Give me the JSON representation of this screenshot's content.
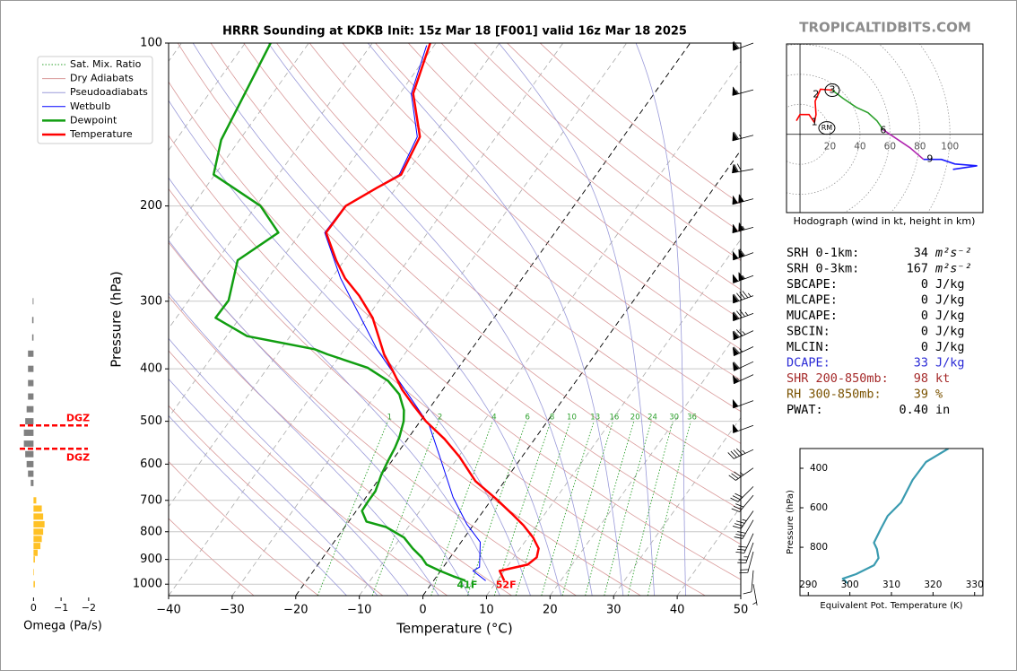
{
  "chart_data": [
    {
      "type": "skewt",
      "title": "HRRR Sounding at KDKB Init: 15z Mar 18 [F001] valid 16z Mar 18 2025",
      "x_label": "Temperature (°C)",
      "y_label": "Pressure (hPa)",
      "xlim": [
        -40,
        50
      ],
      "xticks": [
        {
          "value": -40,
          "label": "−40"
        },
        {
          "value": -30,
          "label": "−30"
        },
        {
          "value": -20,
          "label": "−20"
        },
        {
          "value": -10,
          "label": "−10"
        },
        0,
        10,
        20,
        30,
        40,
        50
      ],
      "ylim": [
        1050,
        100
      ],
      "yticks": [
        100,
        200,
        300,
        400,
        500,
        600,
        700,
        800,
        900,
        1000
      ],
      "log_y": true,
      "grid": true,
      "legend": "upper left",
      "mixing_ratio": {
        "name": "Sat. Mix. Ratio",
        "color": "#2ca02c",
        "values": [
          1,
          2,
          4,
          6,
          8,
          10,
          13,
          16,
          20,
          24,
          30,
          36
        ]
      },
      "dry_adiabats": {
        "name": "Dry Adiabats",
        "color": "#d99a9a",
        "values": [
          -30,
          -20,
          -10,
          0,
          10,
          20,
          30,
          40,
          50,
          60,
          70,
          80,
          90,
          100,
          110,
          120,
          130,
          140,
          150,
          160,
          170
        ]
      },
      "pseudoadiabats": {
        "name": "Pseudoadiabats",
        "color": "#9a9ad9",
        "values": [
          -15,
          -10,
          -5,
          0,
          5,
          10,
          15,
          20,
          25,
          30,
          35,
          40
        ]
      },
      "isotherms": {
        "color": "#aaaaaa",
        "values": [
          -110,
          -100,
          -90,
          -80,
          -70,
          -60,
          -50,
          -40,
          -30,
          -20,
          -10,
          0,
          10,
          20,
          30,
          40
        ],
        "highlight": [
          -20,
          0
        ]
      },
      "series": [
        {
          "name": "Wetbulb",
          "color": "#0000ff",
          "pressure": [
            985,
            945,
            930,
            836,
            775,
            691,
            582,
            509,
            446,
            368,
            272,
            224,
            200,
            175,
            149,
            124,
            101
          ],
          "values": [
            8.2,
            5.1,
            5.7,
            3.0,
            -1.1,
            -6.3,
            -12.9,
            -18.1,
            -24.9,
            -34.9,
            -48.6,
            -56.2,
            -56.0,
            -51.0,
            -52.4,
            -58.2,
            -61.2
          ]
        },
        {
          "name": "Dewpoint",
          "color": "#119e11",
          "surface_label": "41F",
          "pressure": [
            985,
            967,
            945,
            920,
            892,
            859,
            820,
            784,
            766,
            732,
            704,
            673,
            628,
            593,
            560,
            535,
            500,
            477,
            446,
            421,
            398,
            376,
            368,
            348,
            322,
            299,
            252,
            224,
            200,
            175,
            151,
            127,
            100
          ],
          "values": [
            5.0,
            2.6,
            -0.1,
            -2.9,
            -4.5,
            -6.9,
            -9.5,
            -13.5,
            -17.2,
            -19.1,
            -19.2,
            -19.2,
            -20.1,
            -20.6,
            -21.0,
            -21.5,
            -22.6,
            -23.8,
            -26.3,
            -29.6,
            -34.3,
            -42.1,
            -44.7,
            -56.8,
            -63.8,
            -63.7,
            -66.8,
            -63.5,
            -69.3,
            -80.2,
            -82.9,
            -84.2,
            -86.0
          ]
        },
        {
          "name": "Temperature",
          "color": "#ff0000",
          "surface_label": "52F",
          "pressure": [
            985,
            945,
            920,
            892,
            859,
            820,
            778,
            740,
            696,
            645,
            582,
            539,
            500,
            466,
            437,
            405,
            376,
            322,
            293,
            272,
            252,
            224,
            200,
            185,
            175,
            149,
            124,
            100
          ],
          "values": [
            11.1,
            9.3,
            13.0,
            13.6,
            12.9,
            10.8,
            7.9,
            4.7,
            0.7,
            -4.6,
            -9.8,
            -14.2,
            -19.1,
            -23.0,
            -26.4,
            -29.8,
            -33.2,
            -39.1,
            -43.7,
            -47.9,
            -51.3,
            -56.0,
            -55.9,
            -53.0,
            -50.7,
            -52.0,
            -57.9,
            -60.9
          ]
        }
      ],
      "wind": {
        "pressure": [
          100,
          122,
          148,
          171,
          194,
          219,
          244,
          269,
          293,
          316,
          340,
          364,
          388,
          410,
          458,
          509,
          564,
          610,
          660,
          685,
          732,
          761,
          806,
          838,
          871,
          943,
          1000
        ],
        "speed": [
          60,
          55,
          65,
          70,
          100,
          105,
          110,
          105,
          95,
          85,
          75,
          65,
          60,
          55,
          50,
          50,
          45,
          35,
          30,
          30,
          35,
          30,
          30,
          25,
          20,
          10,
          5
        ],
        "direction": [
          250,
          255,
          255,
          260,
          255,
          255,
          250,
          250,
          250,
          250,
          245,
          245,
          245,
          245,
          250,
          250,
          245,
          235,
          225,
          220,
          215,
          210,
          205,
          200,
          195,
          185,
          170
        ]
      }
    },
    {
      "type": "hbar",
      "x_label": "Omega (Pa/s)",
      "xlim": [
        0.5,
        -2.2
      ],
      "xticks": [
        0,
        {
          "value": -1,
          "label": "−1"
        },
        {
          "value": -2,
          "label": "−2"
        }
      ],
      "ylim": [
        1050,
        100
      ],
      "log_y": true,
      "positive_color": "#808080",
      "negative_color": "#ffc125",
      "pressure": [
        300,
        325,
        350,
        375,
        400,
        425,
        450,
        475,
        500,
        525,
        550,
        575,
        600,
        625,
        650,
        700,
        725,
        750,
        775,
        800,
        825,
        850,
        875,
        900,
        950,
        1000
      ],
      "values": [
        0.03,
        0.05,
        0.05,
        0.2,
        0.2,
        0.2,
        0.2,
        0.25,
        0.3,
        0.35,
        0.35,
        0.3,
        0.25,
        0.2,
        0.1,
        -0.1,
        -0.3,
        -0.35,
        -0.4,
        -0.35,
        -0.3,
        -0.25,
        -0.15,
        -0.05,
        -0.02,
        -0.05
      ],
      "dgz": {
        "label": "DGZ",
        "color": "#ff0000",
        "pressure": [
          509,
          562
        ]
      }
    },
    {
      "type": "hodograph",
      "caption": "Hodograph (wind in kt, height in km)",
      "xlim": [
        -9,
        122
      ],
      "ylim": [
        -52,
        60
      ],
      "xticks": [
        20,
        40,
        60,
        80,
        100
      ],
      "series": [
        {
          "color": "#ff0000",
          "u": [
            -2.4,
            0,
            6,
            9.6
          ],
          "v": [
            9,
            13.1,
            13.1,
            7.8
          ]
        },
        {
          "color": "#ff0000",
          "u": [
            9.6,
            10.7,
            10.1,
            13.7,
            21.5
          ],
          "v": [
            7.8,
            13.1,
            22,
            29.9,
            29.3
          ]
        },
        {
          "color": "#2ca02c",
          "u": [
            21.5,
            28.7,
            37.6,
            45.4,
            51.3,
            55.5
          ],
          "v": [
            29.3,
            23.9,
            17.9,
            14.3,
            9,
            3
          ]
        },
        {
          "color": "#b026b0",
          "u": [
            55.5,
            64.5,
            73.4,
            82.4
          ],
          "v": [
            3,
            -3,
            -9,
            -16.7
          ]
        },
        {
          "color": "#1a1aff",
          "u": [
            82.4,
            94.3,
            103.3,
            118.2,
            102
          ],
          "v": [
            -16.7,
            -16.7,
            -19.7,
            -20.9,
            -23.3
          ]
        }
      ],
      "labels": [
        {
          "text": "1",
          "u": 9.6,
          "v": 7.8,
          "circled": false
        },
        {
          "text": "2",
          "u": 10.7,
          "v": 26.3,
          "circled": false
        },
        {
          "text": "3",
          "u": 21.5,
          "v": 29.3,
          "circled": true
        },
        {
          "text": "6",
          "u": 55.5,
          "v": 2.4,
          "circled": false
        },
        {
          "text": "9",
          "u": 86.6,
          "v": -16.7,
          "circled": false
        },
        {
          "text": "RM",
          "u": 17.9,
          "v": 4.2,
          "circled": true
        }
      ]
    },
    {
      "type": "line",
      "x_label": "Equivalent Pot. Temperature (K)",
      "y_label": "Pressure (hPa)",
      "xlim": [
        288,
        332
      ],
      "xticks": [
        290,
        300,
        310,
        320,
        330
      ],
      "ylim": [
        1045,
        300
      ],
      "yticks": [
        400,
        600,
        800
      ],
      "color": "#3a9bb0",
      "pressure": [
        300,
        368,
        459,
        573,
        641,
        709,
        777,
        809,
        855,
        891,
        936,
        959,
        982
      ],
      "values": [
        323.7,
        318.3,
        315.1,
        312.3,
        309.1,
        307.4,
        305.8,
        306.5,
        306.9,
        305.8,
        301.5,
        298.3,
        299.4
      ]
    }
  ],
  "watermark": "TROPICALTIDBITS.COM",
  "indices": {
    "rows": [
      {
        "label": "SRH 0-1km:",
        "value": 34,
        "unit": "m²s⁻²",
        "color": "#000000"
      },
      {
        "label": "SRH 0-3km:",
        "value": 167,
        "unit": "m²s⁻²",
        "color": "#000000"
      },
      {
        "label": "SBCAPE:",
        "value": 0,
        "unit": "J/kg",
        "color": "#000000"
      },
      {
        "label": "MLCAPE:",
        "value": 0,
        "unit": "J/kg",
        "color": "#000000"
      },
      {
        "label": "MUCAPE:",
        "value": 0,
        "unit": "J/kg",
        "color": "#000000"
      },
      {
        "label": "SBCIN:",
        "value": 0,
        "unit": "J/kg",
        "color": "#000000"
      },
      {
        "label": "MLCIN:",
        "value": 0,
        "unit": "J/kg",
        "color": "#000000"
      },
      {
        "label": "DCAPE:",
        "value": 33,
        "unit": "J/kg",
        "color": "#2b2bd6"
      },
      {
        "label": "SHR 200-850mb:",
        "value": 98,
        "unit": "kt",
        "color": "#a52a2a"
      },
      {
        "label": "RH 300-850mb:",
        "value": 39,
        "unit": "%",
        "color": "#7a5200"
      },
      {
        "label": "PWAT:",
        "value": "0.40",
        "unit": "in",
        "color": "#000000"
      }
    ]
  }
}
